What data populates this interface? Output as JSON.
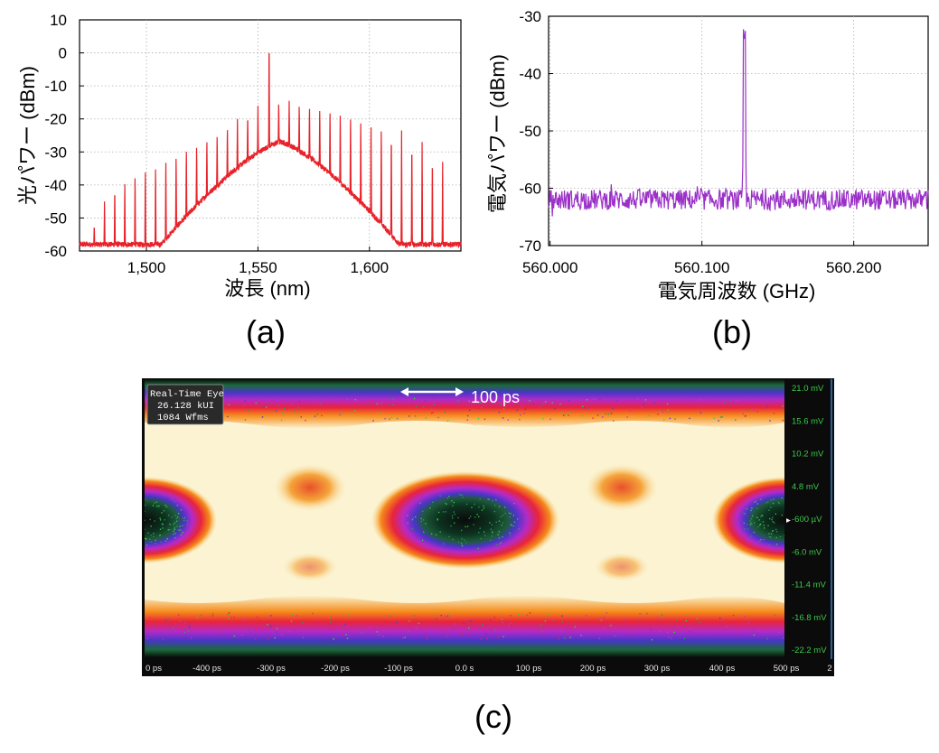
{
  "panels": {
    "a": {
      "label": "(a)"
    },
    "b": {
      "label": "(b)"
    },
    "c": {
      "label": "(c)"
    }
  },
  "chart_data": [
    {
      "id": "a",
      "type": "line",
      "xlabel": "波長 (nm)",
      "ylabel": "光パワー (dBm)",
      "xlim": [
        1470,
        1641
      ],
      "ylim": [
        -60,
        10
      ],
      "xticks": [
        1500,
        1550,
        1600
      ],
      "xtick_labels": [
        "1,500",
        "1,550",
        "1,600"
      ],
      "yticks": [
        10,
        0,
        -10,
        -20,
        -30,
        -40,
        -50,
        -60
      ],
      "ytick_labels": [
        "10",
        "0",
        "-10",
        "-20",
        "-30",
        "-40",
        "-50",
        "-60"
      ],
      "grid": true,
      "color": "#e8222a",
      "comb_lines": {
        "x": [
          1476.6,
          1481.2,
          1485.8,
          1490.3,
          1494.9,
          1499.5,
          1504.1,
          1508.7,
          1513.3,
          1517.9,
          1522.5,
          1527.1,
          1531.7,
          1536.3,
          1540.8,
          1545.4,
          1550.0,
          1555.0,
          1559.3,
          1564.0,
          1568.5,
          1573.1,
          1577.7,
          1582.3,
          1586.9,
          1591.5,
          1596.1,
          1600.7,
          1605.3,
          1609.8,
          1614.4,
          1619.0,
          1623.6,
          1628.2,
          1632.8
        ],
        "y": [
          -52,
          -45,
          -40,
          -38,
          -36,
          -34,
          -33,
          -31,
          -30,
          -28,
          -27,
          -25.5,
          -24,
          -22,
          -20,
          -18,
          -16,
          6,
          -14.5,
          -14.5,
          -15,
          -15.5,
          -16,
          -16.5,
          -17,
          -18,
          -19,
          -20,
          -21,
          -22,
          -23.5,
          -25,
          -27,
          -30,
          -33
        ]
      },
      "envelope_peak": {
        "x": 1560,
        "y": -27
      },
      "noise_floor": -58
    },
    {
      "id": "b",
      "type": "line",
      "xlabel": "電気周波数 (GHz)",
      "ylabel": "電気パワー (dBm)",
      "xlim": [
        559.999,
        560.249
      ],
      "ylim": [
        -70,
        -30
      ],
      "xticks": [
        560.0,
        560.1,
        560.2
      ],
      "xtick_labels": [
        "560.000",
        "560.100",
        "560.200"
      ],
      "yticks": [
        -30,
        -40,
        -50,
        -60,
        -70
      ],
      "ytick_labels": [
        "-30",
        "-40",
        "-50",
        "-60",
        "-70"
      ],
      "grid": true,
      "color": "#9b30c8",
      "peak": {
        "x": 560.128,
        "y": -34.5
      },
      "noise_floor": -62
    },
    {
      "id": "c",
      "type": "heatmap",
      "title": "Real-Time Eye",
      "info_lines": [
        "Real-Time Eye",
        "26.128 kUI",
        "1084 Wfms"
      ],
      "scale_bar_label": "100 ps",
      "xtick_labels": [
        "0 ps",
        "-400 ps",
        "-300 ps",
        "-200 ps",
        "-100 ps",
        "0.0 s",
        "100 ps",
        "200 ps",
        "300 ps",
        "400 ps",
        "500 ps",
        "2"
      ],
      "ytick_labels": [
        "21.0 mV",
        "15.6 mV",
        "10.2 mV",
        "4.8 mV",
        "-600 µV",
        "-6.0 mV",
        "-11.4 mV",
        "-16.8 mV",
        "-22.2 mV"
      ],
      "eye_crossings_ps": [
        -480,
        -200,
        200,
        480
      ],
      "eye_centers_ps": [
        -480,
        0,
        480
      ]
    }
  ]
}
